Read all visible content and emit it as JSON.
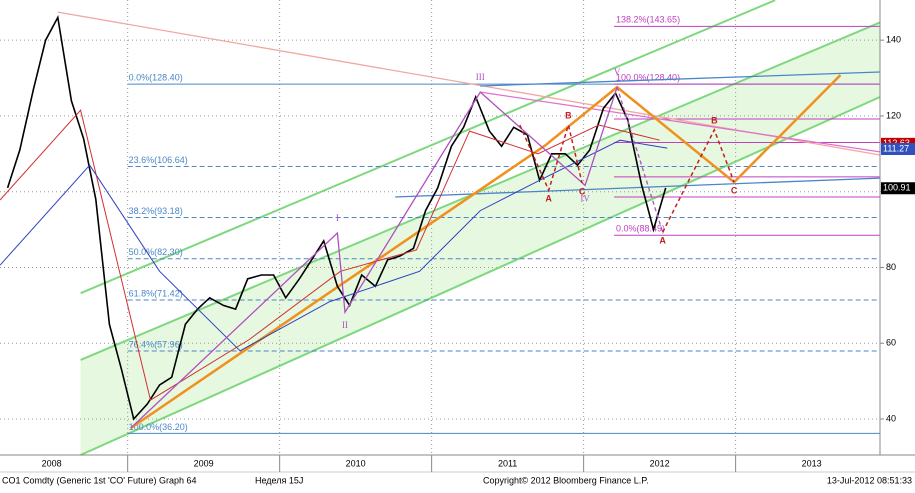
{
  "chart_data": {
    "type": "line",
    "xlim": [
      2008.16,
      2013.95
    ],
    "xticks": [
      {
        "value": 2008.5,
        "label": "2008"
      },
      {
        "value": 2009.5,
        "label": "2009"
      },
      {
        "value": 2010.5,
        "label": "2010"
      },
      {
        "value": 2011.5,
        "label": "2011"
      },
      {
        "value": 2012.5,
        "label": "2012"
      },
      {
        "value": 2013.5,
        "label": "2013"
      }
    ],
    "ylim": [
      30.5,
      150.6
    ],
    "yticks": [
      40,
      60,
      80,
      100,
      120,
      140
    ],
    "grid": true,
    "series": [
      {
        "color": "#000000",
        "x": [
          2008.21,
          2008.29,
          2008.38,
          2008.46,
          2008.54,
          2008.63,
          2008.71,
          2008.79,
          2008.88,
          2008.96,
          2009.04,
          2009.13,
          2009.21,
          2009.29,
          2009.38,
          2009.46,
          2009.54,
          2009.63,
          2009.71,
          2009.79,
          2009.88,
          2009.96,
          2010.04,
          2010.13,
          2010.21,
          2010.29,
          2010.38,
          2010.46,
          2010.54,
          2010.63,
          2010.71,
          2010.79,
          2010.88,
          2010.96,
          2011.04,
          2011.13,
          2011.21,
          2011.29,
          2011.38,
          2011.46,
          2011.54,
          2011.63,
          2011.71,
          2011.79,
          2011.88,
          2011.96,
          2012.04,
          2012.13,
          2012.21,
          2012.29,
          2012.38,
          2012.46,
          2012.54
        ],
        "values": [
          101,
          111,
          127,
          140,
          146,
          124,
          114,
          98,
          65,
          53,
          40,
          44,
          49,
          51,
          65,
          69,
          72,
          70,
          69,
          77,
          78,
          78,
          72,
          77,
          82,
          87,
          75,
          70,
          78,
          75,
          82,
          83,
          85,
          95,
          101,
          112,
          117,
          125,
          116,
          112,
          117,
          115,
          103,
          110,
          110,
          107,
          111,
          122,
          126,
          119,
          102,
          90,
          101
        ]
      },
      {
        "color": "#d03030",
        "x": [
          2008.16,
          2008.69,
          2009.15,
          2009.8,
          2010.4,
          2010.9,
          2011.25,
          2011.7,
          2012.1,
          2012.5
        ],
        "values": [
          97.8,
          121.5,
          45,
          61,
          79,
          84.6,
          116,
          110,
          117.6,
          113.6
        ]
      },
      {
        "color": "#3040c0",
        "x": [
          2008.16,
          2008.75,
          2009.21,
          2009.74,
          2010.33,
          2010.92,
          2011.32,
          2011.71,
          2012.24,
          2012.55
        ],
        "values": [
          80.6,
          107,
          79,
          58,
          71,
          79,
          95,
          103,
          113.6,
          111.5
        ]
      }
    ],
    "fib_levels": {
      "color": "#4a86c8",
      "x_from": 2009.0,
      "levels": [
        {
          "value": 128.4,
          "label": "0.0%(128.40)",
          "dashed": false
        },
        {
          "value": 106.64,
          "label": "23.6%(106.64)",
          "dashed": true
        },
        {
          "value": 93.18,
          "label": "38.2%(93.18)",
          "dashed": true
        },
        {
          "value": 82.3,
          "label": "50.0%(82.30)",
          "dashed": true
        },
        {
          "value": 71.42,
          "label": "61.8%(71.42)",
          "dashed": true
        },
        {
          "value": 57.96,
          "label": "76.4%(57.96)",
          "dashed": true
        },
        {
          "value": 36.2,
          "label": "100.0%(36.20)",
          "dashed": false
        }
      ]
    },
    "fib_levels_2": {
      "color": "#c040c0",
      "x_from": 2012.2,
      "levels": [
        {
          "value": 143.65,
          "label": "138.2%(143.65)",
          "dashed": false
        },
        {
          "value": 128.4,
          "label": "100.0%(128.40)",
          "dashed": false
        },
        {
          "value": 88.49,
          "label": "0.0%(88.49)",
          "dashed": false
        }
      ]
    },
    "level_lines": {
      "color": "#c040c0",
      "x_from": 2012.2,
      "values": [
        119.2,
        113.0,
        103.9,
        98.6
      ]
    },
    "price_flags": [
      {
        "value": 112.63,
        "color": "#c00000"
      },
      {
        "value": 111.27,
        "color": "#3050c0"
      },
      {
        "value": 100.91,
        "color": "#000000"
      }
    ],
    "channel": {
      "color": "#7ed87e",
      "fill": "#e6f8e0",
      "lower": {
        "x": [
          2008.69,
          2013.95
        ],
        "y": [
          30.5,
          125.0
        ]
      },
      "upper": {
        "x": [
          2008.69,
          2013.95
        ],
        "y": [
          55.6,
          144.7
        ]
      },
      "outer": {
        "x": [
          2008.69,
          2013.26
        ],
        "y": [
          73.2,
          150.55
        ]
      }
    },
    "trend_lines": [
      {
        "color": "#f0a8a0",
        "x": [
          2008.54,
          2013.95
        ],
        "y": [
          147.4,
          109.7
        ]
      },
      {
        "color": "#e070d0",
        "x": [
          2011.32,
          2013.95
        ],
        "y": [
          126.3,
          110.5
        ]
      },
      {
        "color": "#4a86c8",
        "x": [
          2010.76,
          2013.95
        ],
        "y": [
          98.6,
          103.6
        ]
      },
      {
        "color": "#4a86c8",
        "x": [
          2011.32,
          2013.95
        ],
        "y": [
          127.9,
          131.6
        ]
      },
      {
        "color": "#f0901e",
        "x": [
          2009.02,
          2011.75,
          2012.22,
          2012.99,
          2013.69
        ],
        "y": [
          37.6,
          112.3,
          127.6,
          102.5,
          130.8
        ]
      }
    ],
    "waves": {
      "color": "#b050c0",
      "x": [
        2009.02,
        2010.38,
        2010.43,
        2011.32,
        2012.01,
        2012.22,
        2012.52
      ],
      "y": [
        37.6,
        89.1,
        68.2,
        126.3,
        101.7,
        127.6,
        89.3
      ],
      "labels": [
        "I",
        "II",
        "III",
        "IV",
        "V"
      ]
    },
    "corrections": [
      {
        "color": "#c02020",
        "x": [
          2011.58,
          2011.77,
          2011.9,
          2011.99
        ],
        "y": [
          117.6,
          100.4,
          117.6,
          102.3
        ],
        "labels": [
          "A",
          "B",
          "C"
        ]
      },
      {
        "color": "#c02020",
        "x": [
          2012.52,
          2012.86,
          2012.99
        ],
        "y": [
          89.3,
          116.3,
          102.5
        ],
        "labels": [
          "A",
          "B",
          "C"
        ]
      }
    ],
    "footer": {
      "left": "CO1 Comdty (Generic 1st 'CO' Future) Graph 64",
      "week": "Неделя 15J",
      "copyright": "Copyright© 2012 Bloomberg Finance L.P.",
      "timestamp": "13-Jul-2012 08:51:33"
    }
  }
}
